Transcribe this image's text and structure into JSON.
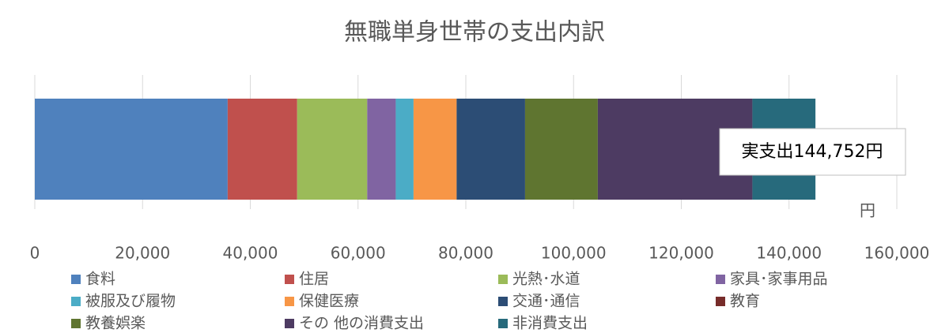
{
  "chart_data": {
    "type": "stacked-bar",
    "orientation": "horizontal",
    "title": "無職単身世帯の支出内訳",
    "categories": [
      null
    ],
    "series": [
      {
        "name": "食料",
        "color": "#4f81bd",
        "values": [
          35800
        ]
      },
      {
        "name": "住居",
        "color": "#c0504d",
        "values": [
          12900
        ]
      },
      {
        "name": "光熱･水道",
        "color": "#9bbb59",
        "values": [
          13000
        ]
      },
      {
        "name": "家具･家事用品",
        "color": "#8064a2",
        "values": [
          5300
        ]
      },
      {
        "name": "被服及び履物",
        "color": "#4bacc6",
        "values": [
          3300
        ]
      },
      {
        "name": "保健医療",
        "color": "#f79646",
        "values": [
          8000
        ]
      },
      {
        "name": "交通･通信",
        "color": "#2c4d75",
        "values": [
          12700
        ]
      },
      {
        "name": "教育",
        "color": "#772c2a",
        "values": [
          0
        ]
      },
      {
        "name": "教養娯楽",
        "color": "#5f7530",
        "values": [
          13500
        ]
      },
      {
        "name": "その 他の消費支出",
        "color": "#4d3b62",
        "values": [
          28700
        ]
      },
      {
        "name": "非消費支出",
        "color": "#276a7c",
        "values": [
          11700
        ]
      }
    ],
    "xlim": [
      0,
      160000
    ],
    "xticks": [
      0,
      {
        "value": 20000,
        "label": "20,000"
      },
      {
        "value": 40000,
        "label": "40,000"
      },
      {
        "value": 60000,
        "label": "60,000"
      },
      {
        "value": 80000,
        "label": "80,000"
      },
      {
        "value": 100000,
        "label": "100,000"
      },
      {
        "value": 120000,
        "label": "120,000"
      },
      {
        "value": 140000,
        "label": "140,000"
      },
      {
        "value": 160000,
        "label": "160,000"
      }
    ],
    "grid": true,
    "unit_label": "円",
    "annotation": "実支出144,752円",
    "legend": "bottom"
  }
}
